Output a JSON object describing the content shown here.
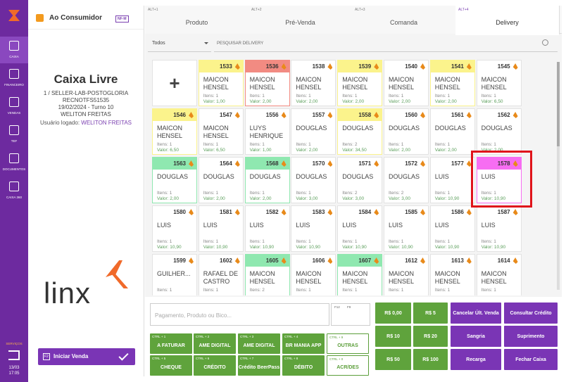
{
  "sidebar": {
    "items": [
      "CAIXA",
      "FINANCEIRO",
      "VENDAS",
      "TEF",
      "DOCUMENTOS",
      "CAIXA 360"
    ],
    "services": "SERVIÇOS",
    "date": "13/03",
    "time": "17:05"
  },
  "customer": {
    "name": "Ao Consumidor",
    "badge": "NF-M"
  },
  "status": {
    "title": "Caixa Livre",
    "lines": [
      "1 / SELLER-LAB-POSTOGLORIA",
      "RECNOTFS51535",
      "19/02/2024 - Turno 10",
      "WELITON FREITAS"
    ],
    "user_label": "Usuário logado:",
    "user": "WELITON FREITAS"
  },
  "logo": "linx",
  "start_key": "F2",
  "start": "Iniciar Venda",
  "tabs": [
    {
      "key": "ALT+1",
      "label": "Produto"
    },
    {
      "key": "ALT+2",
      "label": "Pré-Venda"
    },
    {
      "key": "ALT+3",
      "label": "Comanda"
    },
    {
      "key": "ALT+4",
      "label": "Delivery"
    }
  ],
  "filter": "Todos",
  "search": "PESQUISAR DELIVERY",
  "add": "+",
  "cards": [
    {
      "id": "1533",
      "name": "MAICON HENSEL",
      "items": "Itens: 1",
      "value": "Valor: 1,00",
      "color": "#fbf38c"
    },
    {
      "id": "1536",
      "name": "MAICON HENSEL",
      "items": "Itens: 1",
      "value": "Valor: 2,00",
      "color": "#f28b82"
    },
    {
      "id": "1538",
      "name": "MAICON HENSEL",
      "items": "Itens: 1",
      "value": "Valor: 2,00",
      "color": "#ffffff"
    },
    {
      "id": "1539",
      "name": "MAICON HENSEL",
      "items": "Itens: 1",
      "value": "Valor: 2,00",
      "color": "#fbf38c"
    },
    {
      "id": "1540",
      "name": "MAICON HENSEL",
      "items": "Itens: 1",
      "value": "Valor: 2,00",
      "color": "#ffffff"
    },
    {
      "id": "1541",
      "name": "MAICON HENSEL",
      "items": "Itens: 1",
      "value": "Valor: 2,00",
      "color": "#fbf38c"
    },
    {
      "id": "1545",
      "name": "MAICON HENSEL",
      "items": "Itens: 1",
      "value": "Valor: 6,50",
      "color": "#ffffff"
    },
    {
      "id": "1546",
      "name": "MAICON HENSEL",
      "items": "Itens: 1",
      "value": "Valor: 6,50",
      "color": "#fbf38c"
    },
    {
      "id": "1547",
      "name": "MAICON HENSEL",
      "items": "Itens: 1",
      "value": "Valor: 6,50",
      "color": "#ffffff"
    },
    {
      "id": "1556",
      "name": "LUYS HENRIQUE",
      "items": "Itens: 1",
      "value": "Valor: 1,00",
      "color": "#ffffff"
    },
    {
      "id": "1557",
      "name": "DOUGLAS",
      "items": "Itens: 1",
      "value": "Valor: 2,00",
      "color": "#ffffff"
    },
    {
      "id": "1558",
      "name": "DOUGLAS",
      "items": "Itens: 2",
      "value": "Valor: 34,50",
      "color": "#fbf38c"
    },
    {
      "id": "1560",
      "name": "DOUGLAS",
      "items": "Itens: 1",
      "value": "Valor: 2,00",
      "color": "#ffffff"
    },
    {
      "id": "1561",
      "name": "DOUGLAS",
      "items": "Itens: 1",
      "value": "Valor: 2,00",
      "color": "#ffffff"
    },
    {
      "id": "1562",
      "name": "DOUGLAS",
      "items": "Itens: 1",
      "value": "Valor: 2,00",
      "color": "#ffffff"
    },
    {
      "id": "1563",
      "name": "DOUGLAS",
      "items": "Itens: 1",
      "value": "Valor: 2,00",
      "color": "#8fe8b0"
    },
    {
      "id": "1564",
      "name": "DOUGLAS",
      "items": "Itens: 1",
      "value": "Valor: 2,00",
      "color": "#ffffff"
    },
    {
      "id": "1568",
      "name": "DOUGLAS",
      "items": "Itens: 1",
      "value": "Valor: 2,00",
      "color": "#8fe8b0"
    },
    {
      "id": "1570",
      "name": "DOUGLAS",
      "items": "Itens: 1",
      "value": "Valor: 3,00",
      "color": "#ffffff"
    },
    {
      "id": "1571",
      "name": "DOUGLAS",
      "items": "Itens: 2",
      "value": "Valor: 3,00",
      "color": "#ffffff"
    },
    {
      "id": "1572",
      "name": "DOUGLAS",
      "items": "Itens: 2",
      "value": "Valor: 3,00",
      "color": "#ffffff"
    },
    {
      "id": "1577",
      "name": "LUIS",
      "items": "Itens: 1",
      "value": "Valor: 10,90",
      "color": "#ffffff"
    },
    {
      "id": "1578",
      "name": "LUIS",
      "items": "Itens: 1",
      "value": "Valor: 10,90",
      "color": "#f76df2"
    },
    {
      "id": "1580",
      "name": "LUIS",
      "items": "Itens: 1",
      "value": "Valor: 10,90",
      "color": "#ffffff"
    },
    {
      "id": "1581",
      "name": "LUIS",
      "items": "Itens: 1",
      "value": "Valor: 10,90",
      "color": "#ffffff"
    },
    {
      "id": "1582",
      "name": "LUIS",
      "items": "Itens: 1",
      "value": "Valor: 10,90",
      "color": "#ffffff"
    },
    {
      "id": "1583",
      "name": "LUIS",
      "items": "Itens: 1",
      "value": "Valor: 10,90",
      "color": "#ffffff"
    },
    {
      "id": "1584",
      "name": "LUIS",
      "items": "Itens: 1",
      "value": "Valor: 10,90",
      "color": "#ffffff"
    },
    {
      "id": "1585",
      "name": "LUIS",
      "items": "Itens: 1",
      "value": "Valor: 10,90",
      "color": "#ffffff"
    },
    {
      "id": "1586",
      "name": "LUIS",
      "items": "Itens: 1",
      "value": "Valor: 10,90",
      "color": "#ffffff"
    },
    {
      "id": "1587",
      "name": "LUIS",
      "items": "Itens: 1",
      "value": "Valor: 10,90",
      "color": "#ffffff"
    },
    {
      "id": "1599",
      "name": "GUILHER...",
      "items": "Itens: 1",
      "color": "#ffffff"
    },
    {
      "id": "1602",
      "name": "RAFAEL DE CASTRO",
      "items": "Itens: 1",
      "color": "#ffffff"
    },
    {
      "id": "1605",
      "name": "MAICON HENSEL",
      "items": "Itens: 2",
      "color": "#8fe8b0"
    },
    {
      "id": "1606",
      "name": "MAICON HENSEL",
      "items": "Itens: 1",
      "color": "#ffffff"
    },
    {
      "id": "1607",
      "name": "MAICON HENSEL",
      "items": "Itens: 1",
      "color": "#8fe8b0"
    },
    {
      "id": "1612",
      "name": "MAICON HENSEL",
      "items": "Itens: 1",
      "color": "#ffffff"
    },
    {
      "id": "1613",
      "name": "MAICON HENSEL",
      "items": "Itens: 1",
      "color": "#ffffff"
    },
    {
      "id": "1614",
      "name": "MAICON HENSEL",
      "items": "Itens: 1",
      "color": "#ffffff"
    }
  ],
  "input_placeholder": "Pagamento, Produto ou Bico...",
  "input_keys": [
    "F12",
    "F9"
  ],
  "payments": [
    {
      "key": "CTRL + 1",
      "label": "A FATURAR"
    },
    {
      "key": "CTRL + 2",
      "label": "AME DIGITAL"
    },
    {
      "key": "CTRL + 3",
      "label": "AME DIGITAL"
    },
    {
      "key": "CTRL + 4",
      "label": "BR MANIA APP"
    },
    {
      "key": "CTRL + 9",
      "label": "OUTRAS",
      "outline": true
    },
    {
      "key": "CTRL + 5",
      "label": "CHEQUE"
    },
    {
      "key": "CTRL + 6",
      "label": "CRÉDITO"
    },
    {
      "key": "CTRL + 7",
      "label": "Crédito BeerPass"
    },
    {
      "key": "CTRL + 8",
      "label": "DÉBITO"
    },
    {
      "key": "CTRL + 0",
      "label": "ACR/DES",
      "outline": true
    }
  ],
  "actions": [
    [
      "R$ 0,00",
      "R$ 5",
      "Cancelar Últ. Venda",
      "Consultar Crédito"
    ],
    [
      "R$ 10",
      "R$ 20",
      "Sangria",
      "Suprimento"
    ],
    [
      "R$ 50",
      "R$ 100",
      "Recarga",
      "Fechar Caixa"
    ]
  ]
}
